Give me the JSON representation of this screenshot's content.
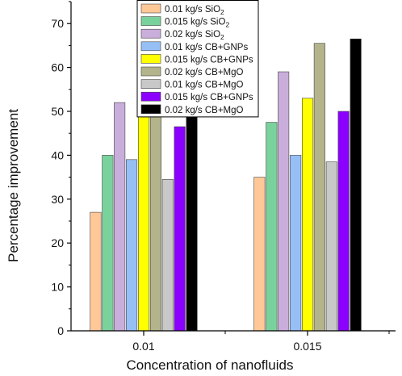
{
  "chart_data": {
    "type": "bar",
    "xlabel": "Concentration of nanofluids",
    "ylabel": "Percentage improvement",
    "ylim": [
      0,
      75
    ],
    "yticks": [
      0,
      10,
      20,
      30,
      40,
      50,
      60,
      70
    ],
    "categories": [
      "0.01",
      "0.015"
    ],
    "legend_position": "top-center",
    "grid": false,
    "series": [
      {
        "name": "0.01 kg/s SiO",
        "sub": "2",
        "color": "#ffc896",
        "values": [
          27,
          35
        ]
      },
      {
        "name": "0.015 kg/s SiO",
        "sub": "2",
        "color": "#79d29c",
        "values": [
          40,
          47.5
        ]
      },
      {
        "name": "0.02 kg/s SiO",
        "sub": "2",
        "color": "#c9aedb",
        "values": [
          52,
          59
        ]
      },
      {
        "name": "0.01 kg/s CB+GNPs",
        "sub": "",
        "color": "#96c0f5",
        "values": [
          39,
          40
        ]
      },
      {
        "name": "0.015 kg/s CB+GNPs",
        "sub": "",
        "color": "#ffff00",
        "values": [
          51,
          53
        ]
      },
      {
        "name": "0.02 kg/s CB+MgO",
        "sub": "",
        "color": "#b4b48c",
        "values": [
          55,
          65.5
        ]
      },
      {
        "name": "0.01 kg/s CB+MgO",
        "sub": "",
        "color": "#c8c8c8",
        "values": [
          34.5,
          38.5
        ]
      },
      {
        "name": "0.015 kg/s CB+GNPs",
        "sub": "",
        "color": "#8c00ff",
        "values": [
          46.5,
          50
        ]
      },
      {
        "name": "0.02 kg/s CB+MgO",
        "sub": "",
        "color": "#000000",
        "values": [
          51.5,
          66.5
        ]
      }
    ]
  }
}
